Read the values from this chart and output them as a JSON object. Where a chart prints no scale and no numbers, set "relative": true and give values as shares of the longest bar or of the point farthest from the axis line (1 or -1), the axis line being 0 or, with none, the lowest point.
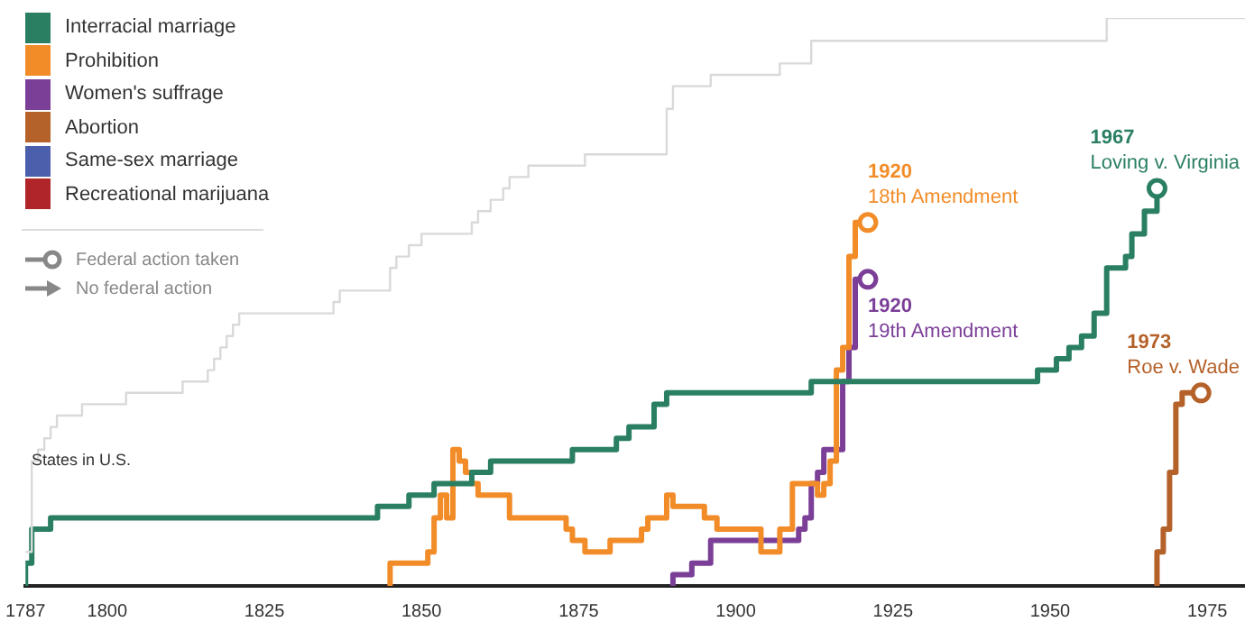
{
  "chart_data": {
    "type": "step",
    "relative": true,
    "legend": "top left",
    "xlim": [
      1787,
      1981
    ],
    "xticks": [
      1787,
      1800,
      1825,
      1850,
      1875,
      1900,
      1925,
      1950,
      1975
    ],
    "grid": false,
    "series": [
      {
        "name": "States in U.S.",
        "color": "#d9d9d9",
        "x": [
          1787,
          1788,
          1789,
          1790,
          1791,
          1792,
          1796,
          1803,
          1812,
          1816,
          1817,
          1818,
          1819,
          1820,
          1821,
          1836,
          1837,
          1845,
          1846,
          1848,
          1850,
          1858,
          1859,
          1861,
          1863,
          1864,
          1867,
          1876,
          1889,
          1890,
          1896,
          1907,
          1912,
          1959,
          1981
        ],
        "values": [
          0.06,
          0.22,
          0.24,
          0.26,
          0.28,
          0.3,
          0.32,
          0.34,
          0.36,
          0.38,
          0.4,
          0.42,
          0.44,
          0.46,
          0.48,
          0.5,
          0.52,
          0.56,
          0.58,
          0.6,
          0.62,
          0.64,
          0.66,
          0.68,
          0.7,
          0.72,
          0.74,
          0.76,
          0.84,
          0.88,
          0.9,
          0.92,
          0.96,
          1,
          1
        ]
      },
      {
        "name": "Interracial marriage",
        "color": "#2a7f62",
        "x": [
          1787,
          1787,
          1788,
          1791,
          1843,
          1848,
          1852,
          1858,
          1861,
          1874,
          1881,
          1883,
          1887,
          1889,
          1912,
          1948,
          1951,
          1953,
          1955,
          1957,
          1959,
          1962,
          1963,
          1965,
          1967
        ],
        "values": [
          0,
          0.04,
          0.1,
          0.12,
          0.14,
          0.16,
          0.18,
          0.2,
          0.22,
          0.24,
          0.26,
          0.28,
          0.32,
          0.34,
          0.36,
          0.38,
          0.4,
          0.42,
          0.44,
          0.48,
          0.56,
          0.58,
          0.62,
          0.66,
          0.7
        ]
      },
      {
        "name": "Prohibition",
        "color": "#f28c28",
        "x": [
          1845,
          1845,
          1851,
          1852,
          1853,
          1854,
          1855,
          1856,
          1857,
          1858,
          1859,
          1864,
          1873,
          1874,
          1876,
          1880,
          1885,
          1886,
          1889,
          1890,
          1895,
          1897,
          1904,
          1907,
          1909,
          1913,
          1914,
          1915,
          1916,
          1917,
          1918,
          1919,
          1921
        ],
        "values": [
          0,
          0.04,
          0.06,
          0.12,
          0.16,
          0.12,
          0.24,
          0.22,
          0.2,
          0.18,
          0.16,
          0.12,
          0.1,
          0.08,
          0.06,
          0.08,
          0.1,
          0.12,
          0.16,
          0.14,
          0.12,
          0.1,
          0.06,
          0.1,
          0.18,
          0.16,
          0.18,
          0.22,
          0.38,
          0.42,
          0.58,
          0.64,
          0.64
        ]
      },
      {
        "name": "Women's suffrage",
        "color": "#7b3f98",
        "x": [
          1890,
          1890,
          1893,
          1896,
          1910,
          1911,
          1912,
          1913,
          1914,
          1917,
          1918,
          1919,
          1921
        ],
        "values": [
          0,
          0.02,
          0.04,
          0.08,
          0.1,
          0.12,
          0.18,
          0.2,
          0.24,
          0.36,
          0.42,
          0.54,
          0.54
        ]
      },
      {
        "name": "Abortion",
        "color": "#b5622a",
        "x": [
          1967,
          1967,
          1968,
          1969,
          1970,
          1971,
          1974
        ],
        "values": [
          0,
          0.06,
          0.1,
          0.2,
          0.32,
          0.34,
          0.34
        ]
      },
      {
        "name": "Same-sex marriage",
        "color": "#4c5fac"
      },
      {
        "name": "Recreational marijuana",
        "color": "#b0252a"
      }
    ],
    "annotations": [
      "Federal action taken",
      "No federal action",
      {
        "text": "1920\n18th Amendment",
        "x": 1921,
        "y": 0.64
      },
      {
        "text": "1920\n19th Amendment",
        "x": 1921,
        "y": 0.54
      },
      {
        "text": "1967\nLoving v. Virginia",
        "x": 1967,
        "y": 0.7
      },
      {
        "text": "1973\nRoe v. Wade",
        "x": 1974,
        "y": 0.34
      }
    ]
  }
}
